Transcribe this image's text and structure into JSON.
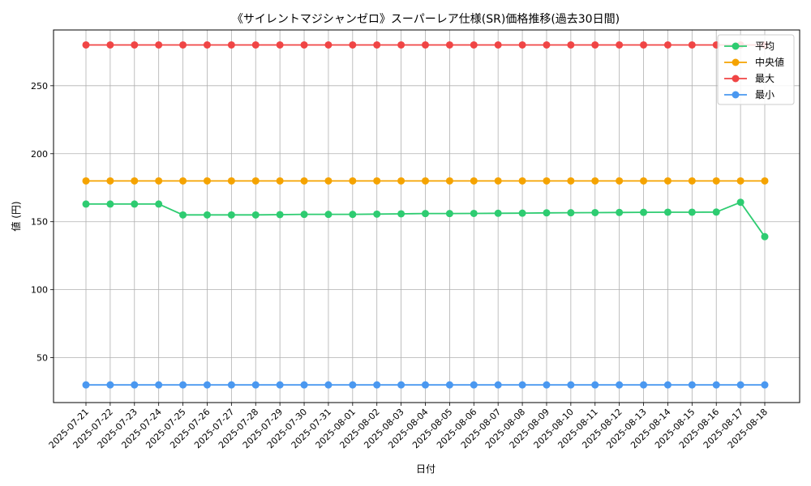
{
  "chart_data": {
    "type": "line",
    "title": "《サイレントマジシャンゼロ》スーパーレア仕様(SR)価格推移(過去30日間)",
    "xlabel": "日付",
    "ylabel": "値 (円)",
    "ylim": [
      17,
      291
    ],
    "yticks": [
      50,
      100,
      150,
      200,
      250
    ],
    "grid": true,
    "legend_position": "top-right",
    "categories": [
      "2025-07-21",
      "2025-07-22",
      "2025-07-23",
      "2025-07-24",
      "2025-07-25",
      "2025-07-26",
      "2025-07-27",
      "2025-07-28",
      "2025-07-29",
      "2025-07-30",
      "2025-07-31",
      "2025-08-01",
      "2025-08-02",
      "2025-08-03",
      "2025-08-04",
      "2025-08-05",
      "2025-08-06",
      "2025-08-07",
      "2025-08-08",
      "2025-08-09",
      "2025-08-10",
      "2025-08-11",
      "2025-08-12",
      "2025-08-13",
      "2025-08-14",
      "2025-08-15",
      "2025-08-16",
      "2025-08-17",
      "2025-08-18"
    ],
    "series": [
      {
        "name": "平均",
        "color": "#2ecc71",
        "values": [
          163,
          163,
          163,
          163,
          155,
          155,
          155,
          155,
          155.2,
          155.4,
          155.4,
          155.4,
          155.6,
          155.8,
          156,
          156,
          156.1,
          156.2,
          156.3,
          156.5,
          156.6,
          156.7,
          156.8,
          156.9,
          157,
          157,
          157.1,
          164.3,
          139
        ]
      },
      {
        "name": "中央値",
        "color": "#f5a300",
        "values": [
          180,
          180,
          180,
          180,
          180,
          180,
          180,
          180,
          180,
          180,
          180,
          180,
          180,
          180,
          180,
          180,
          180,
          180,
          180,
          180,
          180,
          180,
          180,
          180,
          180,
          180,
          180,
          180,
          180
        ]
      },
      {
        "name": "最大",
        "color": "#f04545",
        "values": [
          280,
          280,
          280,
          280,
          280,
          280,
          280,
          280,
          280,
          280,
          280,
          280,
          280,
          280,
          280,
          280,
          280,
          280,
          280,
          280,
          280,
          280,
          280,
          280,
          280,
          280,
          280,
          280,
          280
        ]
      },
      {
        "name": "最小",
        "color": "#4a98f0",
        "values": [
          30,
          30,
          30,
          30,
          30,
          30,
          30,
          30,
          30,
          30,
          30,
          30,
          30,
          30,
          30,
          30,
          30,
          30,
          30,
          30,
          30,
          30,
          30,
          30,
          30,
          30,
          30,
          30,
          30
        ]
      }
    ]
  }
}
